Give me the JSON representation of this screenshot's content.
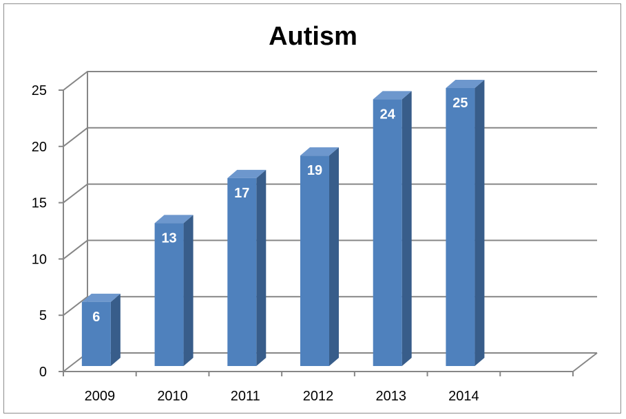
{
  "chart_data": {
    "type": "bar",
    "title": "Autism",
    "categories": [
      "2009",
      "2010",
      "2011",
      "2012",
      "2013",
      "2014"
    ],
    "values": [
      6,
      13,
      17,
      19,
      24,
      25
    ],
    "ylim": [
      0,
      25
    ],
    "yticks": [
      "0",
      "5",
      "10",
      "15",
      "20",
      "25"
    ],
    "grid": true,
    "legend": "none",
    "three_d": true,
    "data_labels": true,
    "colors": {
      "bar_front": "#4f81bd",
      "bar_side": "#385d8a",
      "bar_top": "#6d97cd",
      "grid": "#868686",
      "axis": "#868686",
      "data_label": "#ffffff"
    }
  }
}
